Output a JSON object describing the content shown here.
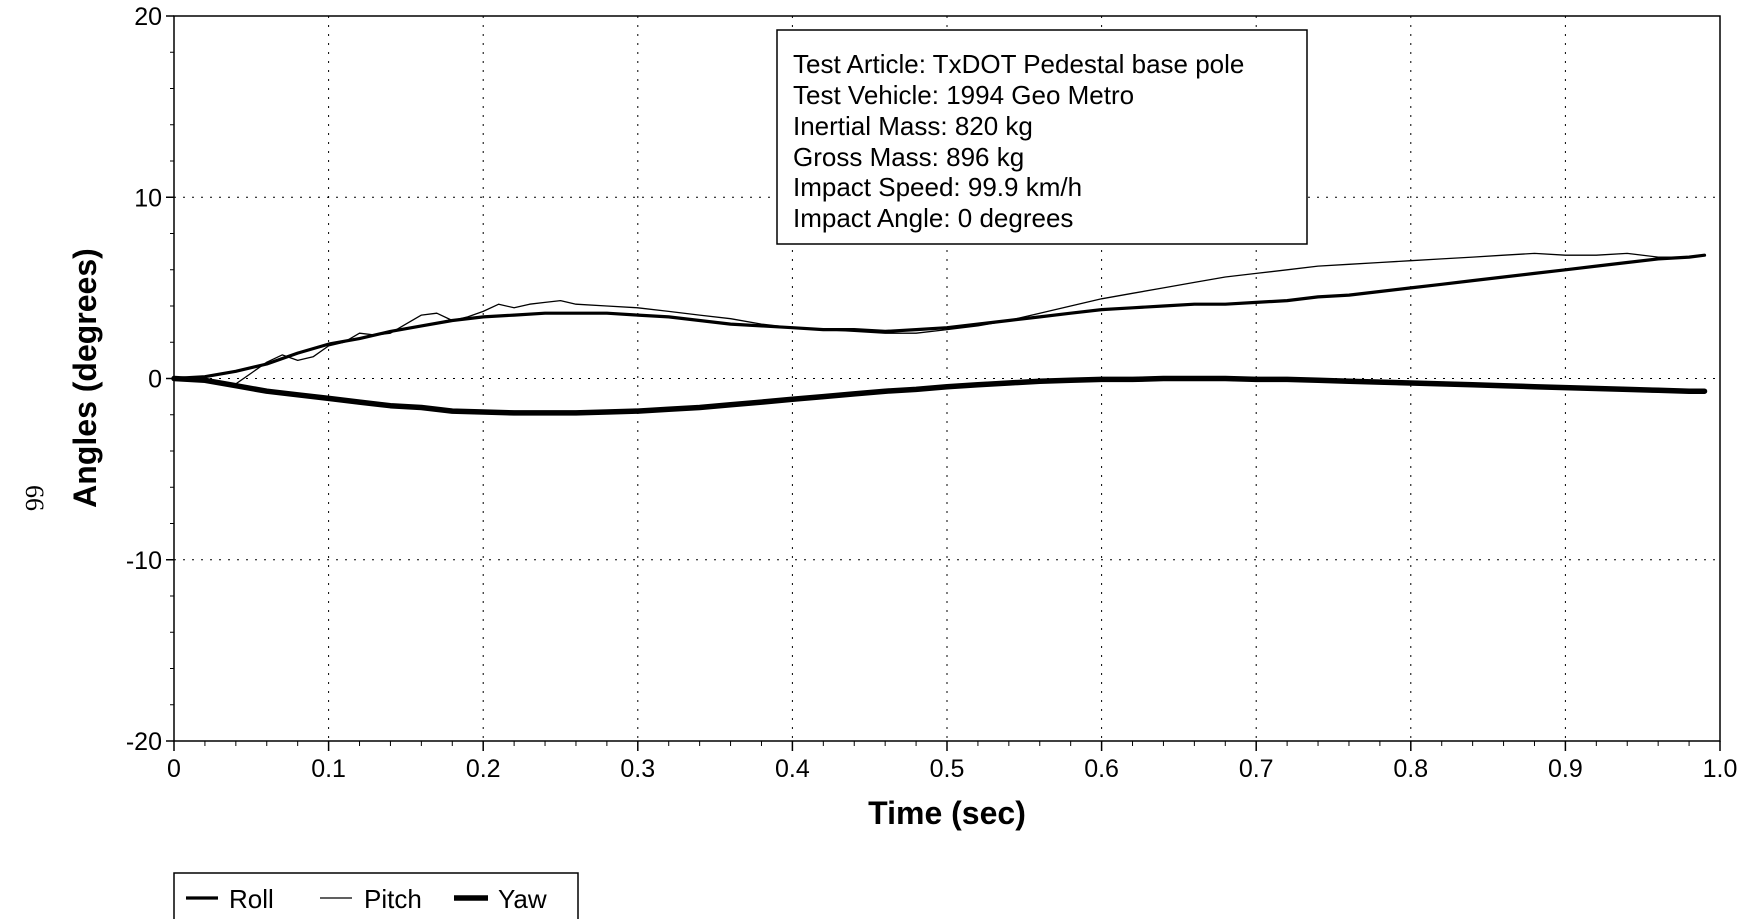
{
  "page_number": "66",
  "chart_data": {
    "type": "line",
    "xlabel": "Time (sec)",
    "ylabel": "Angles (degrees)",
    "xlim": [
      0,
      1.0
    ],
    "ylim": [
      -20,
      20
    ],
    "x_ticks": [
      0,
      0.1,
      0.2,
      0.3,
      0.4,
      0.5,
      0.6,
      0.7,
      0.8,
      0.9,
      1.0
    ],
    "x_tick_labels": [
      "0",
      "0.1",
      "0.2",
      "0.3",
      "0.4",
      "0.5",
      "0.6",
      "0.7",
      "0.8",
      "0.9",
      "1.0"
    ],
    "y_ticks": [
      -20,
      -10,
      0,
      10,
      20
    ],
    "y_tick_labels": [
      "-20",
      "-10",
      "0",
      "10",
      "20"
    ],
    "grid": true,
    "legend_position": "bottom-left",
    "annotation": [
      "Test Article: TxDOT Pedestal base pole",
      "Test Vehicle: 1994 Geo Metro",
      "Inertial Mass: 820 kg",
      "Gross Mass: 896 kg",
      "Impact Speed: 99.9 km/h",
      "Impact Angle: 0 degrees"
    ],
    "series": [
      {
        "name": "Roll",
        "line_weight": "medium",
        "x": [
          0,
          0.02,
          0.04,
          0.06,
          0.08,
          0.1,
          0.12,
          0.14,
          0.16,
          0.18,
          0.2,
          0.22,
          0.24,
          0.26,
          0.28,
          0.3,
          0.32,
          0.34,
          0.36,
          0.38,
          0.4,
          0.42,
          0.44,
          0.46,
          0.48,
          0.5,
          0.52,
          0.54,
          0.56,
          0.58,
          0.6,
          0.62,
          0.64,
          0.66,
          0.68,
          0.7,
          0.72,
          0.74,
          0.76,
          0.78,
          0.8,
          0.82,
          0.84,
          0.86,
          0.88,
          0.9,
          0.92,
          0.94,
          0.96,
          0.98,
          0.99
        ],
        "values": [
          0,
          0.1,
          0.4,
          0.8,
          1.4,
          1.9,
          2.2,
          2.6,
          2.9,
          3.2,
          3.4,
          3.5,
          3.6,
          3.6,
          3.6,
          3.5,
          3.4,
          3.2,
          3.0,
          2.9,
          2.8,
          2.7,
          2.7,
          2.6,
          2.7,
          2.8,
          3.0,
          3.2,
          3.4,
          3.6,
          3.8,
          3.9,
          4.0,
          4.1,
          4.1,
          4.2,
          4.3,
          4.5,
          4.6,
          4.8,
          5.0,
          5.2,
          5.4,
          5.6,
          5.8,
          6.0,
          6.2,
          6.4,
          6.6,
          6.7,
          6.8
        ]
      },
      {
        "name": "Pitch",
        "line_weight": "thin",
        "x": [
          0,
          0.02,
          0.04,
          0.05,
          0.06,
          0.07,
          0.08,
          0.09,
          0.1,
          0.11,
          0.12,
          0.13,
          0.14,
          0.15,
          0.16,
          0.17,
          0.18,
          0.19,
          0.2,
          0.21,
          0.22,
          0.23,
          0.24,
          0.25,
          0.26,
          0.28,
          0.3,
          0.32,
          0.34,
          0.36,
          0.38,
          0.4,
          0.42,
          0.44,
          0.46,
          0.48,
          0.5,
          0.52,
          0.54,
          0.56,
          0.58,
          0.6,
          0.62,
          0.64,
          0.66,
          0.68,
          0.7,
          0.72,
          0.74,
          0.76,
          0.78,
          0.8,
          0.82,
          0.84,
          0.86,
          0.88,
          0.9,
          0.92,
          0.94,
          0.96,
          0.98,
          0.99
        ],
        "values": [
          0,
          -0.1,
          -0.3,
          0.3,
          0.9,
          1.3,
          1.0,
          1.2,
          1.8,
          2.0,
          2.5,
          2.4,
          2.5,
          3.0,
          3.5,
          3.6,
          3.2,
          3.4,
          3.7,
          4.1,
          3.9,
          4.1,
          4.2,
          4.3,
          4.1,
          4.0,
          3.9,
          3.7,
          3.5,
          3.3,
          3.0,
          2.8,
          2.7,
          2.6,
          2.5,
          2.5,
          2.7,
          2.9,
          3.2,
          3.6,
          4.0,
          4.4,
          4.7,
          5.0,
          5.3,
          5.6,
          5.8,
          6.0,
          6.2,
          6.3,
          6.4,
          6.5,
          6.6,
          6.7,
          6.8,
          6.9,
          6.8,
          6.8,
          6.9,
          6.7,
          6.7,
          6.8
        ]
      },
      {
        "name": "Yaw",
        "line_weight": "thick",
        "x": [
          0,
          0.02,
          0.04,
          0.06,
          0.08,
          0.1,
          0.12,
          0.14,
          0.16,
          0.18,
          0.2,
          0.22,
          0.24,
          0.26,
          0.28,
          0.3,
          0.32,
          0.34,
          0.36,
          0.38,
          0.4,
          0.42,
          0.44,
          0.46,
          0.48,
          0.5,
          0.52,
          0.54,
          0.56,
          0.58,
          0.6,
          0.62,
          0.64,
          0.66,
          0.68,
          0.7,
          0.72,
          0.74,
          0.76,
          0.78,
          0.8,
          0.82,
          0.84,
          0.86,
          0.88,
          0.9,
          0.92,
          0.94,
          0.96,
          0.98,
          0.99
        ],
        "values": [
          0,
          -0.1,
          -0.4,
          -0.7,
          -0.9,
          -1.1,
          -1.3,
          -1.5,
          -1.6,
          -1.8,
          -1.85,
          -1.9,
          -1.9,
          -1.9,
          -1.85,
          -1.8,
          -1.7,
          -1.6,
          -1.45,
          -1.3,
          -1.15,
          -1.0,
          -0.85,
          -0.7,
          -0.6,
          -0.45,
          -0.35,
          -0.25,
          -0.15,
          -0.1,
          -0.05,
          -0.05,
          0,
          0,
          0,
          -0.05,
          -0.05,
          -0.1,
          -0.15,
          -0.2,
          -0.25,
          -0.3,
          -0.35,
          -0.4,
          -0.45,
          -0.5,
          -0.55,
          -0.6,
          -0.65,
          -0.7,
          -0.7
        ]
      }
    ]
  }
}
